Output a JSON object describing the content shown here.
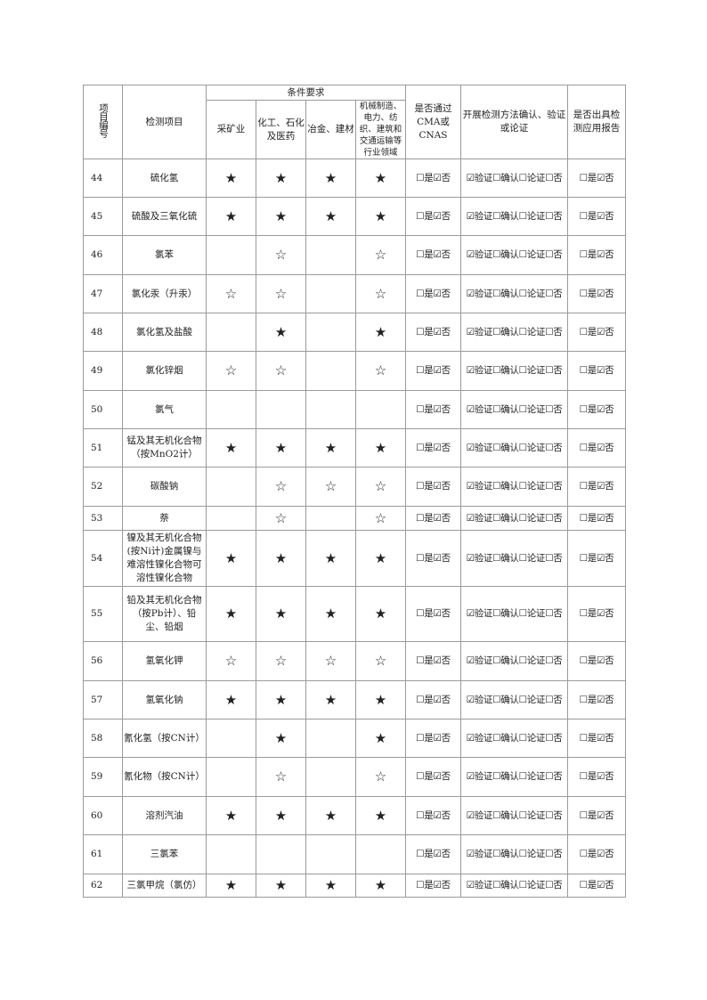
{
  "header": {
    "col_no": "项目编号",
    "col_item": "检测项目",
    "col_group": "条件要求",
    "sub": [
      "采矿业",
      "化工、石化及医药",
      "冶金、建材",
      "机械制造、电力、纺织、建筑和交通运输等行业领域"
    ],
    "col_cma": "是否通过CMA或CNAS",
    "col_method": "开展检测方法确认、验证或论证",
    "col_report": "是否出具检测应用报告"
  },
  "rows": [
    {
      "no": "44",
      "item": "硫化氢",
      "marks": [
        "★",
        "★",
        "★",
        "★"
      ],
      "cma": "☐是☑否",
      "method": "☑验证☐确认☐论证☐否",
      "report": "☐是☑否"
    },
    {
      "no": "45",
      "item": "硫酸及三氧化硫",
      "marks": [
        "★",
        "★",
        "★",
        "★"
      ],
      "cma": "☐是☑否",
      "method": "☑验证☐确认☐论证☐否",
      "report": "☐是☑否"
    },
    {
      "no": "46",
      "item": "氯苯",
      "marks": [
        "",
        "☆",
        "",
        "☆"
      ],
      "cma": "☐是☑否",
      "method": "☑验证☐确认☐论证☐否",
      "report": "☐是☑否"
    },
    {
      "no": "47",
      "item": "氯化汞（升汞）",
      "marks": [
        "☆",
        "☆",
        "",
        "☆"
      ],
      "cma": "☐是☑否",
      "method": "☑验证☐确认☐论证☐否",
      "report": "☐是☑否"
    },
    {
      "no": "48",
      "item": "氯化氢及盐酸",
      "marks": [
        "",
        "★",
        "",
        "★"
      ],
      "cma": "☐是☑否",
      "method": "☑验证☐确认☐论证☐否",
      "report": "☐是☑否"
    },
    {
      "no": "49",
      "item": "氯化锌烟",
      "marks": [
        "☆",
        "☆",
        "",
        "☆"
      ],
      "cma": "☐是☑否",
      "method": "☑验证☐确认☐论证☐否",
      "report": "☐是☑否"
    },
    {
      "no": "50",
      "item": "氯气",
      "marks": [
        "",
        "",
        "",
        ""
      ],
      "cma": "☐是☑否",
      "method": "☑验证☐确认☐论证☐否",
      "report": "☐是☑否"
    },
    {
      "no": "51",
      "item": "锰及其无机化合物（按MnO2计）",
      "marks": [
        "★",
        "★",
        "★",
        "★"
      ],
      "cma": "☐是☑否",
      "method": "☑验证☐确认☐论证☐否",
      "report": "☐是☑否"
    },
    {
      "no": "52",
      "item": "碳酸钠",
      "marks": [
        "",
        "☆",
        "☆",
        "☆"
      ],
      "cma": "☐是☑否",
      "method": "☑验证☐确认☐论证☐否",
      "report": "☐是☑否"
    },
    {
      "no": "53",
      "item": "萘",
      "marks": [
        "",
        "☆",
        "",
        "☆"
      ],
      "cma": "☐是☑否",
      "method": "☑验证☐确认☐论证☐否",
      "report": "☐是☑否"
    },
    {
      "no": "54",
      "item": "镍及其无机化合物(按Ni计)金属镍与难溶性镍化合物可溶性镍化合物",
      "marks": [
        "★",
        "★",
        "★",
        "★"
      ],
      "cma": "☐是☑否",
      "method": "☑验证☐确认☐论证☐否",
      "report": "☐是☑否"
    },
    {
      "no": "55",
      "item": "铅及其无机化合物（按Pb计）、铅尘、铅烟",
      "marks": [
        "★",
        "★",
        "★",
        "★"
      ],
      "cma": "☐是☑否",
      "method": "☑验证☐确认☐论证☐否",
      "report": "☐是☑否"
    },
    {
      "no": "56",
      "item": "氢氧化钾",
      "marks": [
        "☆",
        "☆",
        "☆",
        "☆"
      ],
      "cma": "☐是☑否",
      "method": "☑验证☐确认☐论证☐否",
      "report": "☐是☑否"
    },
    {
      "no": "57",
      "item": "氢氧化钠",
      "marks": [
        "★",
        "★",
        "★",
        "★"
      ],
      "cma": "☐是☑否",
      "method": "☑验证☐确认☐论证☐否",
      "report": "☐是☑否"
    },
    {
      "no": "58",
      "item": "氰化氢（按CN计）",
      "marks": [
        "",
        "★",
        "",
        "★"
      ],
      "cma": "☐是☑否",
      "method": "☑验证☐确认☐论证☐否",
      "report": "☐是☑否"
    },
    {
      "no": "59",
      "item": "氰化物（按CN计）",
      "marks": [
        "",
        "☆",
        "",
        "☆"
      ],
      "cma": "☐是☑否",
      "method": "☑验证☐确认☐论证☐否",
      "report": "☐是☑否"
    },
    {
      "no": "60",
      "item": "溶剂汽油",
      "marks": [
        "★",
        "★",
        "★",
        "★"
      ],
      "cma": "☐是☑否",
      "method": "☑验证☐确认☐论证☐否",
      "report": "☐是☑否"
    },
    {
      "no": "61",
      "item": "三氯苯",
      "marks": [
        "",
        "",
        "",
        ""
      ],
      "cma": "☐是☑否",
      "method": "☑验证☐确认☐论证☐否",
      "report": "☐是☑否"
    },
    {
      "no": "62",
      "item": "三氯甲烷（氯仿）",
      "marks": [
        "★",
        "★",
        "★",
        "★"
      ],
      "cma": "☐是☑否",
      "method": "☑验证☐确认☐论证☐否",
      "report": "☐是☑否"
    }
  ]
}
